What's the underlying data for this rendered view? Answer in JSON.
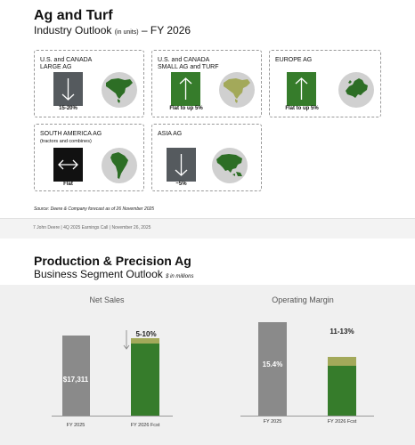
{
  "slide1": {
    "title": "Ag and Turf",
    "subtitle_main": "Industry Outlook",
    "subtitle_units": "(in units)",
    "subtitle_year": "– FY 2026",
    "cards": [
      {
        "title_line1": "U.S. and CANADA",
        "title_line2": "LARGE AG",
        "note": "",
        "direction": "down",
        "caption": "15-20%",
        "region": "north-america",
        "arrow_color": "#555a5e"
      },
      {
        "title_line1": "U.S. and CANADA",
        "title_line2": "SMALL AG and TURF",
        "note": "",
        "direction": "up",
        "caption": "Flat to up 5%",
        "region": "north-america",
        "arrow_color": "#367c2b"
      },
      {
        "title_line1": "EUROPE AG",
        "title_line2": "",
        "note": "",
        "direction": "up",
        "caption": "Flat to up 5%",
        "region": "europe",
        "arrow_color": "#367c2b"
      },
      {
        "title_line1": "SOUTH AMERICA AG",
        "title_line2": "",
        "note": "(tractors and combines)",
        "direction": "flat",
        "caption": "Flat",
        "region": "south-america",
        "arrow_color": "#111111"
      },
      {
        "title_line1": "ASIA AG",
        "title_line2": "",
        "note": "",
        "direction": "down",
        "caption": "~5%",
        "region": "asia",
        "arrow_color": "#555a5e"
      }
    ],
    "source": "Source: Deere & Company forecast as of 26 November 2025",
    "footer": "7      John Deere  |  4Q 2025 Earnings Call  |  November 26, 2025"
  },
  "slide2": {
    "title": "Production & Precision Ag",
    "subtitle_main": "Business Segment Outlook",
    "subtitle_units": "$ in millions"
  },
  "colors": {
    "green": "#367c2b",
    "light_green": "#a3a95a",
    "gray_bar": "#8a8a8a",
    "down_gray": "#555a5e"
  },
  "chart_data": [
    {
      "type": "bar",
      "title": "Net Sales",
      "categories": [
        "FY 2025",
        "FY 2026 Fcst"
      ],
      "values": [
        17311,
        17311
      ],
      "bar_labels": [
        "$17,311",
        ""
      ],
      "forecast_range_label": "5-10%",
      "forecast_direction": "down",
      "forecast_range": [
        0.05,
        0.1
      ]
    },
    {
      "type": "bar",
      "title": "Operating Margin",
      "categories": [
        "FY 2025",
        "FY 2026 Fcst"
      ],
      "values": [
        15.4,
        13
      ],
      "bar_labels": [
        "15.4%",
        ""
      ],
      "forecast_range_label": "11-13%",
      "forecast_range": [
        11,
        13
      ]
    }
  ]
}
